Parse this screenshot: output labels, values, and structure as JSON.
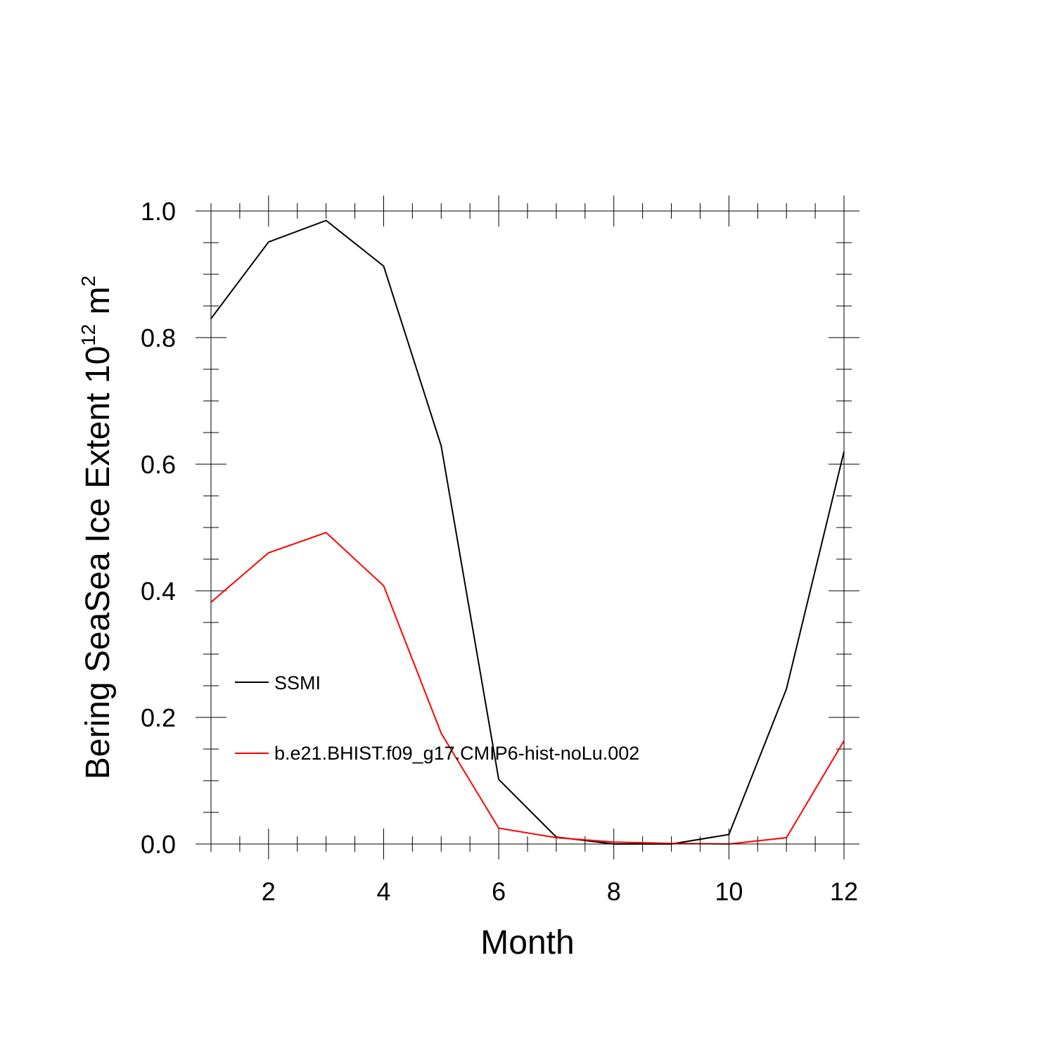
{
  "chart_data": {
    "type": "line",
    "title": "",
    "xlabel": "Month",
    "ylabel": {
      "main": "Bering SeaSea Ice Extent 10",
      "superscript1": "12",
      "unit": " m",
      "superscript2": "2"
    },
    "xlim": [
      1,
      12
    ],
    "ylim": [
      0.0,
      1.0
    ],
    "x_major_ticks": [
      2,
      4,
      6,
      8,
      10,
      12
    ],
    "x_tick_labels": [
      "2",
      "4",
      "6",
      "8",
      "10",
      "12"
    ],
    "y_major_ticks": [
      0.0,
      0.2,
      0.4,
      0.6,
      0.8,
      1.0
    ],
    "y_tick_labels": [
      "0.0",
      "0.2",
      "0.4",
      "0.6",
      "0.8",
      "1.0"
    ],
    "x_minor_step": 0.5,
    "y_minor_step": 0.05,
    "grid": false,
    "legend_position": "left-lower",
    "x": [
      1,
      2,
      3,
      4,
      5,
      6,
      7,
      8,
      9,
      10,
      11,
      12
    ],
    "series": [
      {
        "name": "SSMI",
        "color": "#000000",
        "values": [
          0.83,
          0.951,
          0.985,
          0.913,
          0.629,
          0.102,
          0.011,
          0.0,
          0.0,
          0.015,
          0.245,
          0.62
        ]
      },
      {
        "name": "b.e21.BHIST.f09_g17.CMIP6-hist-noLu.002",
        "color": "#ff0000",
        "values": [
          0.382,
          0.46,
          0.492,
          0.408,
          0.175,
          0.025,
          0.01,
          0.003,
          0.001,
          0.0,
          0.01,
          0.163
        ]
      }
    ]
  }
}
